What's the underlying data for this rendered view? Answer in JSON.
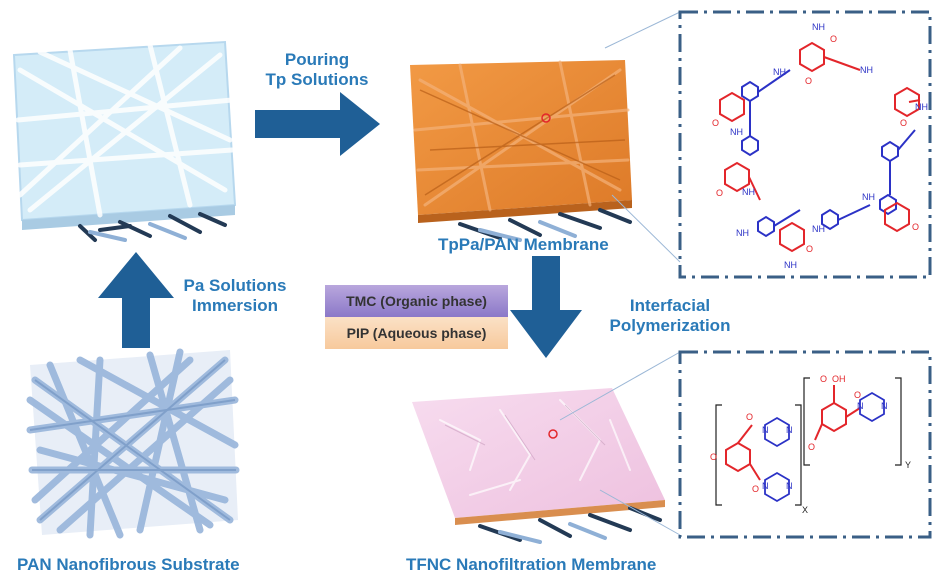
{
  "labels": {
    "step1_line1": "Pouring",
    "step1_line2": "Tp Solutions",
    "step2_line1": "Pa Solutions",
    "step2_line2": "Immersion",
    "step3_line1": "Interfacial",
    "step3_line2": "Polymerization",
    "membrane_top": "TpPa/PAN Membrane",
    "substrate": "PAN Nanofibrous Substrate",
    "membrane_bottom": "TFNC Nanofiltration Membrane"
  },
  "phases": {
    "organic": "TMC (Organic phase)",
    "aqueous": "PIP (Aqueous phase)"
  },
  "structure_top": {
    "amine_label": "NH",
    "oxygen_label": "O"
  },
  "structure_bottom": {
    "acid_label": "OH",
    "oxygen_label": "O",
    "nitrogen_label": "N",
    "sub_x": "X",
    "sub_y": "Y"
  },
  "colors": {
    "arrow": "#1f5f96",
    "label": "#2a7ab8",
    "substrate_fiber": "#a9c4e4",
    "coated_fiber": "#cfe6f5",
    "tppa_layer": "#e98a3a",
    "tfnc_layer": "#f2cfe6",
    "chem_red": "#e3262b",
    "chem_blue": "#2b32c6",
    "frame": "#3a5f86"
  }
}
